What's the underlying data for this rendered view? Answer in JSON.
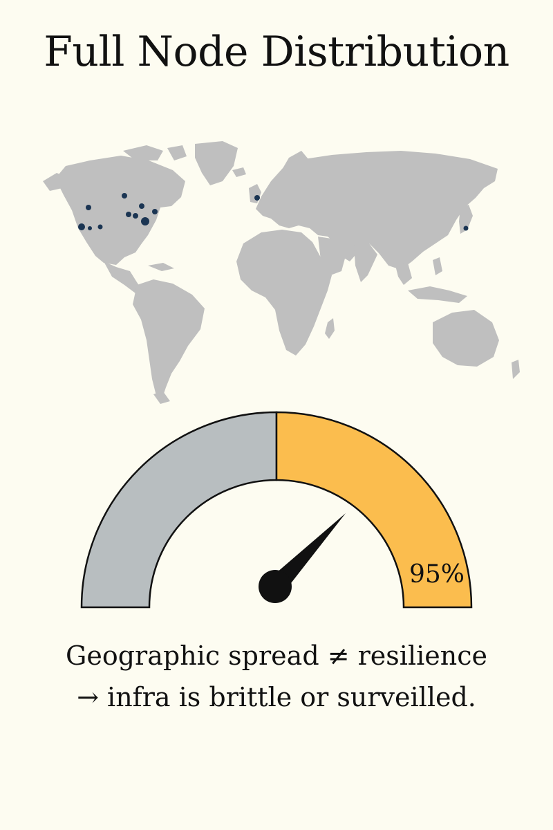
{
  "title": "Full Node Distribution",
  "map": {
    "land_color": "#bfbfbf",
    "node_color": "#1b3553"
  },
  "gauge": {
    "percent": 95,
    "label": "95%",
    "left_color": "#b8bec0",
    "right_color": "#fbbd4e",
    "needle_color": "#111111"
  },
  "caption": {
    "line1": "Geographic spread ≠ resilience",
    "line2": "→ infra is brittle or surveilled."
  }
}
